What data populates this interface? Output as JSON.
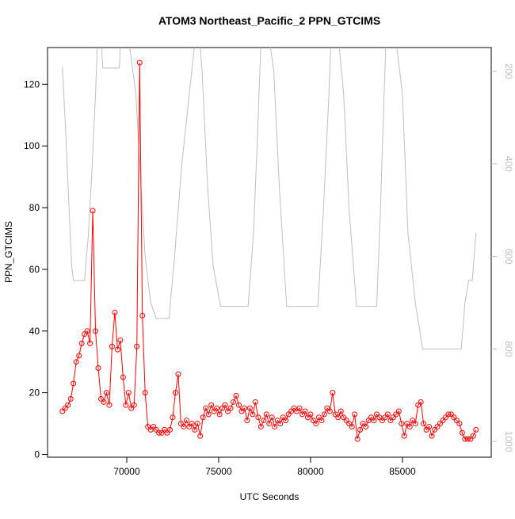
{
  "chart_data": {
    "type": "line",
    "title": "ATOM3 Northeast_Pacific_2 PPN_GTCIMS",
    "x_label": "UTC Seconds",
    "y_label": "PPN_GTCIMS",
    "xlim": [
      65690,
      89830
    ],
    "xticks": [
      70000,
      75000,
      80000,
      85000
    ],
    "ylim": [
      -0.9,
      131.9
    ],
    "yticks": [
      0,
      20,
      40,
      60,
      80,
      100,
      120
    ],
    "y2lim": [
      1034,
      148.6
    ],
    "y2ticks": [
      200,
      400,
      600,
      800,
      1000
    ],
    "series": [
      {
        "color": "#ff0000",
        "markers": true,
        "x": [
          66500,
          66650,
          66800,
          66950,
          67100,
          67250,
          67400,
          67550,
          67700,
          67850,
          68000,
          68150,
          68300,
          68450,
          68600,
          68750,
          68900,
          69050,
          69200,
          69350,
          69500,
          69650,
          69800,
          69950,
          70100,
          70250,
          70400,
          70550,
          70700,
          70850,
          71000,
          71150,
          71300,
          71450,
          71600,
          71750,
          71900,
          72050,
          72200,
          72350,
          72500,
          72650,
          72800,
          72950,
          73100,
          73250,
          73400,
          73550,
          73700,
          73850,
          74000,
          74150,
          74300,
          74450,
          74600,
          74750,
          74900,
          75050,
          75200,
          75350,
          75500,
          75650,
          75800,
          75950,
          76100,
          76250,
          76400,
          76550,
          76700,
          76850,
          77000,
          77150,
          77300,
          77450,
          77600,
          77750,
          77900,
          78050,
          78200,
          78350,
          78500,
          78650,
          78800,
          78950,
          79100,
          79250,
          79400,
          79550,
          79700,
          79850,
          80000,
          80150,
          80300,
          80450,
          80600,
          80750,
          80900,
          81050,
          81200,
          81350,
          81500,
          81650,
          81800,
          81950,
          82100,
          82250,
          82400,
          82550,
          82700,
          82850,
          83000,
          83150,
          83300,
          83450,
          83600,
          83750,
          83900,
          84050,
          84200,
          84350,
          84500,
          84650,
          84800,
          84950,
          85100,
          85250,
          85400,
          85550,
          85700,
          85850,
          86000,
          86150,
          86300,
          86450,
          86600,
          86750,
          86900,
          87050,
          87200,
          87350,
          87500,
          87650,
          87800,
          87950,
          88100,
          88250,
          88400,
          88550,
          88700,
          88850,
          89000
        ],
        "values": [
          14,
          15,
          16,
          18,
          23,
          30,
          32,
          36,
          39,
          40,
          36,
          79,
          40,
          28,
          18,
          17,
          20,
          16,
          35,
          46,
          34,
          37,
          25,
          16,
          20,
          15,
          16,
          35,
          127,
          45,
          20,
          9,
          8,
          9,
          8,
          7,
          7,
          8,
          7,
          8,
          12,
          20,
          26,
          10,
          9,
          11,
          9,
          10,
          8,
          10,
          6,
          12,
          15,
          13,
          16,
          14,
          15,
          13,
          15,
          16,
          14,
          15,
          17,
          19,
          16,
          14,
          15,
          11,
          15,
          13,
          17,
          12,
          9,
          11,
          13,
          10,
          12,
          9,
          11,
          10,
          12,
          11,
          13,
          14,
          15,
          14,
          15,
          13,
          14,
          12,
          13,
          11,
          10,
          12,
          11,
          13,
          15,
          14,
          20,
          13,
          12,
          14,
          12,
          11,
          10,
          9,
          13,
          5,
          8,
          10,
          9,
          11,
          12,
          11,
          13,
          12,
          11,
          12,
          13,
          11,
          12,
          13,
          14,
          10,
          6,
          10,
          9,
          11,
          10,
          16,
          17,
          10,
          8,
          9,
          6,
          8,
          9,
          10,
          11,
          12,
          13,
          13,
          12,
          11,
          10,
          7,
          5,
          5,
          5,
          6,
          8
        ]
      },
      {
        "color": "#bebebe",
        "axis": "y2",
        "x": [
          66500,
          66700,
          66900,
          67000,
          67100,
          67700,
          67900,
          68100,
          68300,
          68400,
          68550,
          68700,
          69600,
          69700,
          70000,
          70500,
          70700,
          71000,
          71300,
          71600,
          72300,
          72600,
          73000,
          73400,
          73700,
          73900,
          74100,
          74400,
          74700,
          75100,
          76600,
          76900,
          77100,
          77300,
          77650,
          78000,
          78300,
          78700,
          80400,
          80700,
          81000,
          81100,
          81450,
          81800,
          82100,
          82500,
          83600,
          83800,
          84000,
          84100,
          84550,
          85000,
          85300,
          85700,
          86100,
          87000,
          88200,
          88400,
          88600,
          88800,
          88900,
          89000
        ],
        "values": [
          190,
          350,
          530,
          620,
          652,
          652,
          560,
          420,
          250,
          140,
          100,
          193,
          193,
          100,
          100,
          250,
          400,
          600,
          700,
          734,
          734,
          600,
          400,
          250,
          140,
          100,
          200,
          450,
          620,
          708,
          708,
          550,
          350,
          140,
          100,
          200,
          450,
          708,
          708,
          500,
          250,
          140,
          100,
          250,
          500,
          708,
          708,
          500,
          250,
          140,
          100,
          250,
          550,
          700,
          800,
          800,
          800,
          700,
          652,
          652,
          600,
          549
        ]
      }
    ]
  }
}
